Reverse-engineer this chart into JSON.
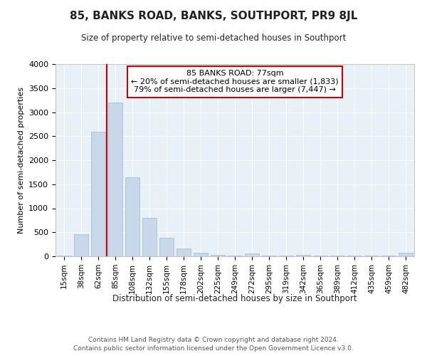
{
  "title": "85, BANKS ROAD, BANKS, SOUTHPORT, PR9 8JL",
  "subtitle": "Size of property relative to semi-detached houses in Southport",
  "xlabel": "Distribution of semi-detached houses by size in Southport",
  "ylabel": "Number of semi-detached properties",
  "footer1": "Contains HM Land Registry data © Crown copyright and database right 2024.",
  "footer2": "Contains public sector information licensed under the Open Government Licence v3.0.",
  "bar_color": "#c8d8ea",
  "bar_edge_color": "#9ab8d0",
  "bg_color": "#e8f0f8",
  "grid_color": "#ffffff",
  "annotation_box_color": "#cc0000",
  "vline_color": "#cc0000",
  "annotation_title": "85 BANKS ROAD: 77sqm",
  "annotation_line1": "← 20% of semi-detached houses are smaller (1,833)",
  "annotation_line2": "79% of semi-detached houses are larger (7,447) →",
  "categories": [
    "15sqm",
    "38sqm",
    "62sqm",
    "85sqm",
    "108sqm",
    "132sqm",
    "155sqm",
    "178sqm",
    "202sqm",
    "225sqm",
    "249sqm",
    "272sqm",
    "295sqm",
    "319sqm",
    "342sqm",
    "365sqm",
    "389sqm",
    "412sqm",
    "435sqm",
    "459sqm",
    "482sqm"
  ],
  "values": [
    15,
    460,
    2600,
    3200,
    1650,
    800,
    380,
    160,
    75,
    25,
    15,
    55,
    15,
    15,
    30,
    15,
    15,
    15,
    15,
    15,
    75
  ],
  "ylim": [
    0,
    4000
  ],
  "yticks": [
    0,
    500,
    1000,
    1500,
    2000,
    2500,
    3000,
    3500,
    4000
  ],
  "vline_index": 3
}
